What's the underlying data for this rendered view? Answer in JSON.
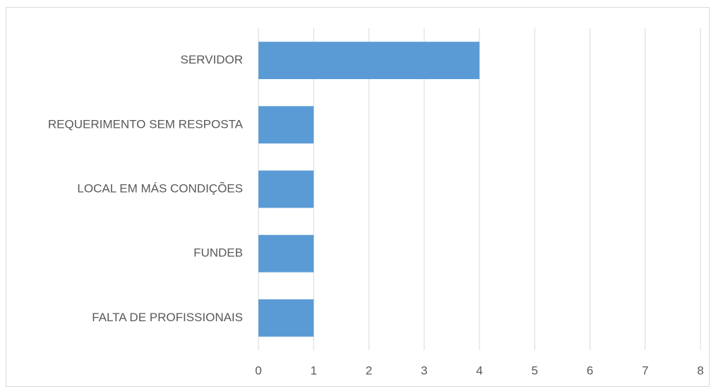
{
  "chart_data": {
    "type": "bar",
    "orientation": "horizontal",
    "categories": [
      "SERVIDOR",
      "REQUERIMENTO SEM RESPOSTA",
      "LOCAL EM MÁS CONDIÇÕES",
      "FUNDEB",
      "FALTA DE PROFISSIONAIS"
    ],
    "values": [
      4,
      1,
      1,
      1,
      1
    ],
    "color": "#5b9bd5",
    "xlim": [
      0,
      8
    ],
    "xticks": [
      0,
      1,
      2,
      3,
      4,
      5,
      6,
      7,
      8
    ],
    "grid": true
  }
}
